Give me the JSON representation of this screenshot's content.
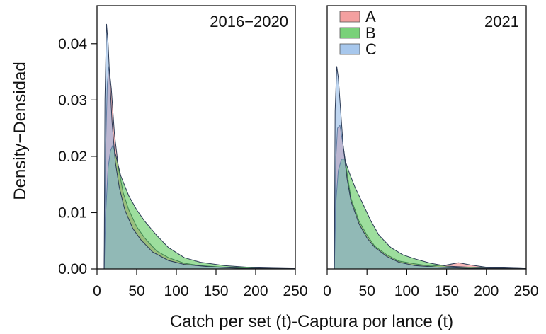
{
  "figure": {
    "ylabel": "Density−Densidad",
    "xlabel": "Catch per set (t)-Captura por lance (t)"
  },
  "chart_data": [
    {
      "type": "area",
      "panel_label": "2016−2020",
      "xlim": [
        0,
        250
      ],
      "ylim": [
        0,
        0.045
      ],
      "xticks": [
        0,
        50,
        100,
        150,
        200,
        250
      ],
      "xtick_labels": [
        "0",
        "50",
        "100",
        "150",
        "200",
        "250"
      ],
      "yticks": [
        0,
        0.01,
        0.02,
        0.03,
        0.04
      ],
      "ytick_labels": [
        "0.00",
        "0.01",
        "0.02",
        "0.03",
        "0.04"
      ],
      "grid": false,
      "legend": null,
      "series": [
        {
          "name": "A",
          "color": "#f08080",
          "x": [
            9,
            11,
            13,
            15,
            18,
            22,
            27,
            33,
            40,
            50,
            60,
            75,
            90,
            110,
            130,
            160,
            200,
            250
          ],
          "y": [
            0,
            0.022,
            0.033,
            0.036,
            0.032,
            0.024,
            0.018,
            0.0135,
            0.0105,
            0.0075,
            0.0055,
            0.0032,
            0.002,
            0.001,
            0.0006,
            0.0003,
            0.0001,
            5e-05
          ]
        },
        {
          "name": "B",
          "color": "#4cc24c",
          "x": [
            9,
            11,
            14,
            17,
            20,
            24,
            30,
            40,
            50,
            60,
            75,
            90,
            110,
            130,
            160,
            200,
            250
          ],
          "y": [
            0,
            0.01,
            0.018,
            0.021,
            0.022,
            0.02,
            0.0165,
            0.013,
            0.0105,
            0.0085,
            0.006,
            0.0038,
            0.002,
            0.0012,
            0.0006,
            0.0002,
            5e-05
          ]
        },
        {
          "name": "C",
          "color": "#8ab4e6",
          "x": [
            9,
            10,
            12,
            14,
            16,
            19,
            23,
            28,
            35,
            45,
            55,
            70,
            90,
            110,
            140,
            180,
            250
          ],
          "y": [
            0,
            0.03,
            0.0435,
            0.04,
            0.034,
            0.026,
            0.019,
            0.0145,
            0.0105,
            0.0072,
            0.0052,
            0.003,
            0.0015,
            0.0008,
            0.0004,
            0.0001,
            4e-05
          ]
        }
      ]
    },
    {
      "type": "area",
      "panel_label": "2021",
      "xlim": [
        0,
        250
      ],
      "ylim": [
        0,
        0.045
      ],
      "xticks": [
        0,
        50,
        100,
        150,
        200,
        250
      ],
      "xtick_labels": [
        "0",
        "50",
        "100",
        "150",
        "200",
        "250"
      ],
      "grid": false,
      "legend": "top-left",
      "series": [
        {
          "name": "A",
          "color": "#f08080",
          "x": [
            9,
            11,
            13,
            16,
            20,
            25,
            30,
            40,
            50,
            60,
            75,
            90,
            110,
            130,
            150,
            165,
            180,
            200,
            250
          ],
          "y": [
            0,
            0.02,
            0.025,
            0.0255,
            0.022,
            0.017,
            0.0125,
            0.0085,
            0.006,
            0.004,
            0.0025,
            0.0014,
            0.0009,
            0.0005,
            0.0007,
            0.0011,
            0.0007,
            0.0003,
            5e-05
          ]
        },
        {
          "name": "B",
          "color": "#4cc24c",
          "x": [
            9,
            11,
            14,
            18,
            22,
            28,
            35,
            45,
            55,
            65,
            80,
            95,
            110,
            130,
            150,
            180,
            200,
            250
          ],
          "y": [
            0,
            0.012,
            0.0175,
            0.0195,
            0.0195,
            0.017,
            0.0145,
            0.0115,
            0.0085,
            0.006,
            0.0038,
            0.0025,
            0.0018,
            0.001,
            0.0005,
            0.0003,
            0.0002,
            5e-05
          ]
        },
        {
          "name": "C",
          "color": "#8ab4e6",
          "x": [
            9,
            10,
            12,
            14,
            17,
            20,
            25,
            30,
            40,
            50,
            60,
            75,
            90,
            110,
            140,
            180,
            250
          ],
          "y": [
            0,
            0.028,
            0.036,
            0.034,
            0.028,
            0.022,
            0.016,
            0.012,
            0.008,
            0.0055,
            0.0038,
            0.0022,
            0.0012,
            0.0006,
            0.0003,
            0.0001,
            4e-05
          ]
        }
      ]
    }
  ]
}
